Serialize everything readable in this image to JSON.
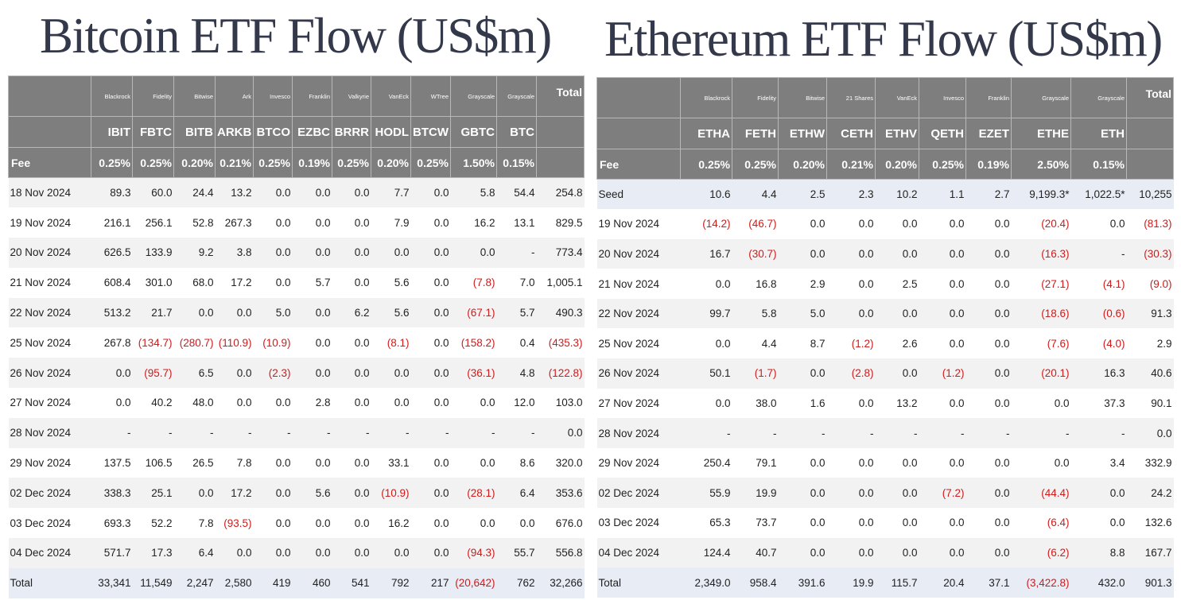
{
  "btc": {
    "title": "Bitcoin ETF Flow (US$m)",
    "total_label": "Total",
    "fee_label": "Fee",
    "issuers": [
      "Blackrock",
      "Fidelity",
      "Bitwise",
      "Ark",
      "Invesco",
      "Franklin",
      "Valkyrie",
      "VanEck",
      "WTree",
      "Grayscale",
      "Grayscale"
    ],
    "tickers": [
      "IBIT",
      "FBTC",
      "BITB",
      "ARKB",
      "BTCO",
      "EZBC",
      "BRRR",
      "HODL",
      "BTCW",
      "GBTC",
      "BTC"
    ],
    "fees": [
      "0.25%",
      "0.25%",
      "0.20%",
      "0.21%",
      "0.25%",
      "0.19%",
      "0.25%",
      "0.20%",
      "0.25%",
      "1.50%",
      "0.15%"
    ],
    "rows": [
      {
        "date": "18 Nov 2024",
        "values": [
          "89.3",
          "60.0",
          "24.4",
          "13.2",
          "0.0",
          "0.0",
          "0.0",
          "7.7",
          "0.0",
          "5.8",
          "54.4",
          "254.8"
        ]
      },
      {
        "date": "19 Nov 2024",
        "values": [
          "216.1",
          "256.1",
          "52.8",
          "267.3",
          "0.0",
          "0.0",
          "0.0",
          "7.9",
          "0.0",
          "16.2",
          "13.1",
          "829.5"
        ]
      },
      {
        "date": "20 Nov 2024",
        "values": [
          "626.5",
          "133.9",
          "9.2",
          "3.8",
          "0.0",
          "0.0",
          "0.0",
          "0.0",
          "0.0",
          "0.0",
          "-",
          "773.4"
        ]
      },
      {
        "date": "21 Nov 2024",
        "values": [
          "608.4",
          "301.0",
          "68.0",
          "17.2",
          "0.0",
          "5.7",
          "0.0",
          "5.6",
          "0.0",
          "(7.8)",
          "7.0",
          "1,005.1"
        ]
      },
      {
        "date": "22 Nov 2024",
        "values": [
          "513.2",
          "21.7",
          "0.0",
          "0.0",
          "5.0",
          "0.0",
          "6.2",
          "5.6",
          "0.0",
          "(67.1)",
          "5.7",
          "490.3"
        ]
      },
      {
        "date": "25 Nov 2024",
        "values": [
          "267.8",
          "(134.7)",
          "(280.7)",
          "(110.9)",
          "(10.9)",
          "0.0",
          "0.0",
          "(8.1)",
          "0.0",
          "(158.2)",
          "0.4",
          "(435.3)"
        ]
      },
      {
        "date": "26 Nov 2024",
        "values": [
          "0.0",
          "(95.7)",
          "6.5",
          "0.0",
          "(2.3)",
          "0.0",
          "0.0",
          "0.0",
          "0.0",
          "(36.1)",
          "4.8",
          "(122.8)"
        ]
      },
      {
        "date": "27 Nov 2024",
        "values": [
          "0.0",
          "40.2",
          "48.0",
          "0.0",
          "0.0",
          "2.8",
          "0.0",
          "0.0",
          "0.0",
          "0.0",
          "12.0",
          "103.0"
        ]
      },
      {
        "date": "28 Nov 2024",
        "values": [
          "-",
          "-",
          "-",
          "-",
          "-",
          "-",
          "-",
          "-",
          "-",
          "-",
          "-",
          "0.0"
        ]
      },
      {
        "date": "29 Nov 2024",
        "values": [
          "137.5",
          "106.5",
          "26.5",
          "7.8",
          "0.0",
          "0.0",
          "0.0",
          "33.1",
          "0.0",
          "0.0",
          "8.6",
          "320.0"
        ]
      },
      {
        "date": "02 Dec 2024",
        "values": [
          "338.3",
          "25.1",
          "0.0",
          "17.2",
          "0.0",
          "5.6",
          "0.0",
          "(10.9)",
          "0.0",
          "(28.1)",
          "6.4",
          "353.6"
        ]
      },
      {
        "date": "03 Dec 2024",
        "values": [
          "693.3",
          "52.2",
          "7.8",
          "(93.5)",
          "0.0",
          "0.0",
          "0.0",
          "16.2",
          "0.0",
          "0.0",
          "0.0",
          "676.0"
        ]
      },
      {
        "date": "04 Dec 2024",
        "values": [
          "571.7",
          "17.3",
          "6.4",
          "0.0",
          "0.0",
          "0.0",
          "0.0",
          "0.0",
          "0.0",
          "(94.3)",
          "55.7",
          "556.8"
        ]
      }
    ],
    "totals": {
      "label": "Total",
      "values": [
        "33,341",
        "11,549",
        "2,247",
        "2,580",
        "419",
        "460",
        "541",
        "792",
        "217",
        "(20,642)",
        "762",
        "32,266"
      ]
    }
  },
  "eth": {
    "title": "Ethereum ETF Flow (US$m)",
    "total_label": "Total",
    "fee_label": "Fee",
    "issuers": [
      "Blackrock",
      "Fidelity",
      "Bitwise",
      "21 Shares",
      "VanEck",
      "Invesco",
      "Franklin",
      "Grayscale",
      "Grayscale"
    ],
    "tickers": [
      "ETHA",
      "FETH",
      "ETHW",
      "CETH",
      "ETHV",
      "QETH",
      "EZET",
      "ETHE",
      "ETH"
    ],
    "fees": [
      "0.25%",
      "0.25%",
      "0.20%",
      "0.21%",
      "0.20%",
      "0.25%",
      "0.19%",
      "2.50%",
      "0.15%"
    ],
    "rows": [
      {
        "date": "Seed",
        "values": [
          "10.6",
          "4.4",
          "2.5",
          "2.3",
          "10.2",
          "1.1",
          "2.7",
          "9,199.3*",
          "1,022.5*",
          "10,255"
        ]
      },
      {
        "date": "19 Nov 2024",
        "values": [
          "(14.2)",
          "(46.7)",
          "0.0",
          "0.0",
          "0.0",
          "0.0",
          "0.0",
          "(20.4)",
          "0.0",
          "(81.3)"
        ]
      },
      {
        "date": "20 Nov 2024",
        "values": [
          "16.7",
          "(30.7)",
          "0.0",
          "0.0",
          "0.0",
          "0.0",
          "0.0",
          "(16.3)",
          "-",
          "(30.3)"
        ]
      },
      {
        "date": "21 Nov 2024",
        "values": [
          "0.0",
          "16.8",
          "2.9",
          "0.0",
          "2.5",
          "0.0",
          "0.0",
          "(27.1)",
          "(4.1)",
          "(9.0)"
        ]
      },
      {
        "date": "22 Nov 2024",
        "values": [
          "99.7",
          "5.8",
          "5.0",
          "0.0",
          "0.0",
          "0.0",
          "0.0",
          "(18.6)",
          "(0.6)",
          "91.3"
        ]
      },
      {
        "date": "25 Nov 2024",
        "values": [
          "0.0",
          "4.4",
          "8.7",
          "(1.2)",
          "2.6",
          "0.0",
          "0.0",
          "(7.6)",
          "(4.0)",
          "2.9"
        ]
      },
      {
        "date": "26 Nov 2024",
        "values": [
          "50.1",
          "(1.7)",
          "0.0",
          "(2.8)",
          "0.0",
          "(1.2)",
          "0.0",
          "(20.1)",
          "16.3",
          "40.6"
        ]
      },
      {
        "date": "27 Nov 2024",
        "values": [
          "0.0",
          "38.0",
          "1.6",
          "0.0",
          "13.2",
          "0.0",
          "0.0",
          "0.0",
          "37.3",
          "90.1"
        ]
      },
      {
        "date": "28 Nov 2024",
        "values": [
          "-",
          "-",
          "-",
          "-",
          "-",
          "-",
          "-",
          "-",
          "-",
          "0.0"
        ]
      },
      {
        "date": "29 Nov 2024",
        "values": [
          "250.4",
          "79.1",
          "0.0",
          "0.0",
          "0.0",
          "0.0",
          "0.0",
          "0.0",
          "3.4",
          "332.9"
        ]
      },
      {
        "date": "02 Dec 2024",
        "values": [
          "55.9",
          "19.9",
          "0.0",
          "0.0",
          "0.0",
          "(7.2)",
          "0.0",
          "(44.4)",
          "0.0",
          "24.2"
        ]
      },
      {
        "date": "03 Dec 2024",
        "values": [
          "65.3",
          "73.7",
          "0.0",
          "0.0",
          "0.0",
          "0.0",
          "0.0",
          "(6.4)",
          "0.0",
          "132.6"
        ]
      },
      {
        "date": "04 Dec 2024",
        "values": [
          "124.4",
          "40.7",
          "0.0",
          "0.0",
          "0.0",
          "0.0",
          "0.0",
          "(6.2)",
          "8.8",
          "167.7"
        ]
      }
    ],
    "totals": {
      "label": "Total",
      "values": [
        "2,349.0",
        "958.4",
        "391.6",
        "19.9",
        "115.7",
        "20.4",
        "37.1",
        "(3,422.8)",
        "432.0",
        "901.3"
      ]
    }
  },
  "colors": {
    "header_bg": "#7e7e7e",
    "negative": "#d11a1a",
    "row_alt": "#f2f2f2",
    "total_bg": "#e8ecf5",
    "title": "#33384a"
  }
}
